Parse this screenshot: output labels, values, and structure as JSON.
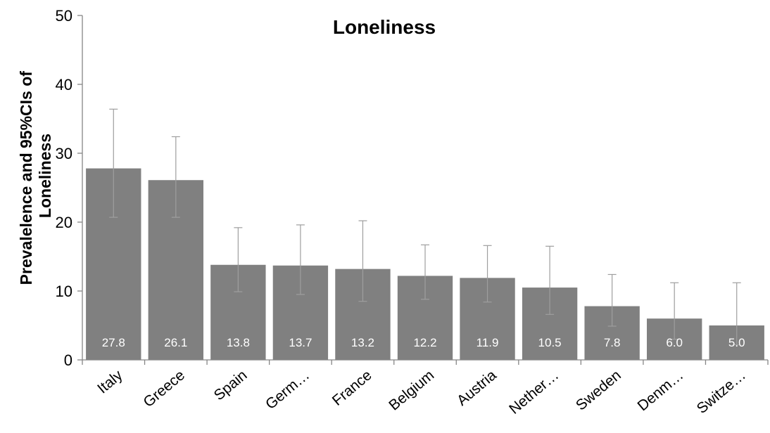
{
  "chart_data": {
    "type": "bar",
    "title": "Loneliness",
    "xlabel": "",
    "ylabel": "Prevalelence and 95%CIs of Loneliness",
    "ylabel_lines": [
      "Prevalelence and 95%CIs of",
      "Loneliness"
    ],
    "ylim": [
      0,
      50
    ],
    "yticks": [
      0,
      10,
      20,
      30,
      40,
      50
    ],
    "grid": false,
    "legend": "none",
    "bar_color": "#808080",
    "label_color": "#ffffff",
    "error_color": "#9e9e9e",
    "categories": [
      "Italy",
      "Greece",
      "Spain",
      "Germ…",
      "France",
      "Belgium",
      "Austria",
      "Nether…",
      "Sweden",
      "Denm…",
      "Switze…"
    ],
    "values": [
      27.8,
      26.1,
      13.8,
      13.7,
      13.2,
      12.2,
      11.9,
      10.5,
      7.8,
      6.0,
      5.0
    ],
    "value_labels": [
      "27.8",
      "26.1",
      "13.8",
      "13.7",
      "13.2",
      "12.2",
      "11.9",
      "10.5",
      "7.8",
      "6.0",
      "5.0"
    ],
    "ci_lower": [
      20.7,
      20.7,
      9.9,
      9.5,
      8.5,
      8.8,
      8.4,
      6.6,
      4.9,
      3.0,
      2.2
    ],
    "ci_upper": [
      36.4,
      32.4,
      19.2,
      19.6,
      20.2,
      16.7,
      16.6,
      16.5,
      12.4,
      11.2,
      11.2
    ]
  }
}
